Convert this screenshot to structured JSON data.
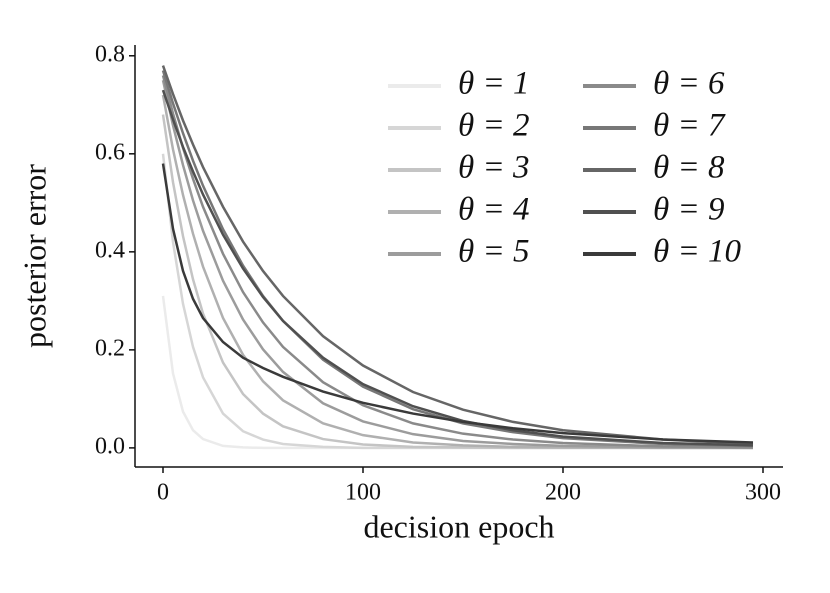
{
  "chart_data": {
    "type": "line",
    "x_label": "decision epoch",
    "y_label": "posterior error",
    "x": [
      0,
      5,
      10,
      15,
      20,
      30,
      40,
      50,
      60,
      80,
      100,
      125,
      150,
      175,
      200,
      250,
      295
    ],
    "series": [
      {
        "name": "θ = 1",
        "color": "#ebebeb",
        "values": [
          0.31,
          0.152,
          0.074,
          0.036,
          0.018,
          0.004,
          0.001,
          0,
          0,
          0,
          0,
          0,
          0,
          0,
          0,
          0,
          0
        ]
      },
      {
        "name": "θ = 2",
        "color": "#d6d6d6",
        "values": [
          0.6,
          0.42,
          0.294,
          0.206,
          0.144,
          0.07,
          0.034,
          0.017,
          0.008,
          0.002,
          0,
          0,
          0,
          0,
          0,
          0,
          0
        ]
      },
      {
        "name": "θ = 3",
        "color": "#c4c4c4",
        "values": [
          0.68,
          0.542,
          0.432,
          0.344,
          0.274,
          0.174,
          0.11,
          0.07,
          0.044,
          0.018,
          0.007,
          0.002,
          0.001,
          0,
          0,
          0,
          0
        ]
      },
      {
        "name": "θ = 4",
        "color": "#b0b0b0",
        "values": [
          0.72,
          0.609,
          0.516,
          0.437,
          0.37,
          0.265,
          0.19,
          0.136,
          0.097,
          0.05,
          0.026,
          0.011,
          0.005,
          0.002,
          0.001,
          0,
          0
        ]
      },
      {
        "name": "θ = 5",
        "color": "#9c9c9c",
        "values": [
          0.75,
          0.658,
          0.577,
          0.505,
          0.443,
          0.341,
          0.262,
          0.201,
          0.155,
          0.091,
          0.054,
          0.028,
          0.014,
          0.008,
          0.004,
          0.001,
          0
        ]
      },
      {
        "name": "θ = 6",
        "color": "#8a8a8a",
        "values": [
          0.76,
          0.682,
          0.612,
          0.549,
          0.492,
          0.396,
          0.318,
          0.256,
          0.206,
          0.134,
          0.087,
          0.05,
          0.029,
          0.017,
          0.01,
          0.003,
          0.001
        ]
      },
      {
        "name": "θ = 7",
        "color": "#777777",
        "values": [
          0.77,
          0.703,
          0.642,
          0.586,
          0.535,
          0.446,
          0.372,
          0.31,
          0.259,
          0.18,
          0.125,
          0.079,
          0.05,
          0.032,
          0.02,
          0.008,
          0.004
        ]
      },
      {
        "name": "θ = 8",
        "color": "#666666",
        "values": [
          0.78,
          0.722,
          0.668,
          0.619,
          0.573,
          0.492,
          0.421,
          0.361,
          0.31,
          0.228,
          0.168,
          0.114,
          0.078,
          0.053,
          0.036,
          0.017,
          0.008
        ]
      },
      {
        "name": "θ = 9",
        "color": "#505050",
        "values": [
          0.73,
          0.67,
          0.614,
          0.564,
          0.517,
          0.435,
          0.366,
          0.308,
          0.259,
          0.184,
          0.13,
          0.085,
          0.055,
          0.036,
          0.023,
          0.01,
          0.005
        ]
      },
      {
        "name": "θ = 10",
        "color": "#3a3a3a",
        "values": [
          0.58,
          0.447,
          0.361,
          0.304,
          0.265,
          0.216,
          0.184,
          0.163,
          0.145,
          0.115,
          0.092,
          0.07,
          0.053,
          0.04,
          0.03,
          0.017,
          0.011
        ]
      }
    ],
    "xlim": [
      -14,
      310
    ],
    "ylim": [
      -0.039,
      0.822
    ],
    "xticks": [
      0,
      100,
      200,
      300
    ],
    "yticks": [
      {
        "value": 0,
        "label": "0.0"
      },
      0.2,
      0.4,
      0.6,
      0.8
    ],
    "legend": "upper right",
    "grid": false
  }
}
